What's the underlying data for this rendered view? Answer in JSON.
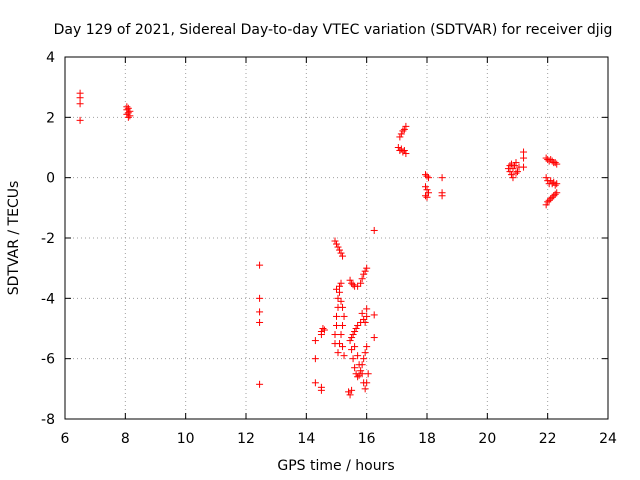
{
  "chart_data": {
    "type": "scatter",
    "title": "Day 129 of 2021, Sidereal Day-to-day VTEC variation (SDTVAR) for receiver djig",
    "xlabel": "GPS time / hours",
    "ylabel": "SDTVAR / TECUs",
    "xlim": [
      6,
      24
    ],
    "ylim": [
      -8,
      4
    ],
    "xticks": [
      6,
      8,
      10,
      12,
      14,
      16,
      18,
      20,
      22,
      24
    ],
    "yticks": [
      -8,
      -6,
      -4,
      -2,
      0,
      2,
      4
    ],
    "grid": true,
    "marker": "+",
    "marker_color": "#ff0000",
    "series": [
      {
        "name": "SDTVAR",
        "points": [
          [
            6.5,
            2.8
          ],
          [
            6.5,
            2.65
          ],
          [
            6.5,
            2.45
          ],
          [
            6.5,
            1.9
          ],
          [
            8.05,
            2.35
          ],
          [
            8.1,
            2.3
          ],
          [
            8.05,
            2.25
          ],
          [
            8.15,
            2.2
          ],
          [
            8.1,
            2.15
          ],
          [
            8.05,
            2.1
          ],
          [
            8.15,
            2.05
          ],
          [
            8.1,
            2.0
          ],
          [
            12.45,
            -2.9
          ],
          [
            12.45,
            -4.0
          ],
          [
            12.45,
            -4.45
          ],
          [
            12.45,
            -4.8
          ],
          [
            12.45,
            -6.85
          ],
          [
            14.3,
            -5.4
          ],
          [
            14.3,
            -6.0
          ],
          [
            14.3,
            -6.8
          ],
          [
            14.5,
            -6.95
          ],
          [
            14.5,
            -7.05
          ],
          [
            14.5,
            -5.1
          ],
          [
            14.55,
            -5.0
          ],
          [
            14.6,
            -5.05
          ],
          [
            14.5,
            -5.2
          ],
          [
            14.95,
            -2.1
          ],
          [
            15.0,
            -2.2
          ],
          [
            15.05,
            -2.3
          ],
          [
            15.1,
            -2.4
          ],
          [
            15.15,
            -2.5
          ],
          [
            15.2,
            -2.6
          ],
          [
            14.95,
            -5.5
          ],
          [
            14.95,
            -5.2
          ],
          [
            15.0,
            -4.9
          ],
          [
            15.0,
            -4.6
          ],
          [
            15.05,
            -4.3
          ],
          [
            15.05,
            -4.0
          ],
          [
            15.1,
            -3.8
          ],
          [
            15.1,
            -3.6
          ],
          [
            15.15,
            -3.5
          ],
          [
            15.0,
            -3.7
          ],
          [
            15.05,
            -5.8
          ],
          [
            15.1,
            -5.5
          ],
          [
            15.15,
            -5.2
          ],
          [
            15.2,
            -4.9
          ],
          [
            15.25,
            -4.6
          ],
          [
            15.2,
            -4.3
          ],
          [
            15.15,
            -4.1
          ],
          [
            15.25,
            -5.9
          ],
          [
            15.2,
            -5.6
          ],
          [
            15.4,
            -7.1
          ],
          [
            15.45,
            -7.2
          ],
          [
            15.5,
            -7.05
          ],
          [
            15.45,
            -3.4
          ],
          [
            15.5,
            -3.5
          ],
          [
            15.55,
            -3.55
          ],
          [
            15.6,
            -3.6
          ],
          [
            15.7,
            -3.6
          ],
          [
            15.8,
            -3.5
          ],
          [
            15.85,
            -3.35
          ],
          [
            15.9,
            -3.2
          ],
          [
            15.95,
            -3.1
          ],
          [
            16.0,
            -3.0
          ],
          [
            15.45,
            -5.4
          ],
          [
            15.5,
            -5.3
          ],
          [
            15.55,
            -5.2
          ],
          [
            15.6,
            -5.1
          ],
          [
            15.65,
            -5.0
          ],
          [
            15.7,
            -4.9
          ],
          [
            15.8,
            -4.8
          ],
          [
            15.5,
            -5.7
          ],
          [
            15.55,
            -6.0
          ],
          [
            15.6,
            -6.3
          ],
          [
            15.65,
            -6.5
          ],
          [
            15.7,
            -6.6
          ],
          [
            15.75,
            -6.55
          ],
          [
            15.8,
            -6.4
          ],
          [
            15.85,
            -6.2
          ],
          [
            15.9,
            -6.0
          ],
          [
            15.95,
            -5.8
          ],
          [
            16.0,
            -5.6
          ],
          [
            15.6,
            -5.6
          ],
          [
            15.7,
            -5.9
          ],
          [
            15.75,
            -6.2
          ],
          [
            15.85,
            -6.5
          ],
          [
            15.9,
            -6.8
          ],
          [
            15.95,
            -7.0
          ],
          [
            16.0,
            -6.8
          ],
          [
            16.05,
            -6.5
          ],
          [
            15.85,
            -4.5
          ],
          [
            15.9,
            -4.7
          ],
          [
            15.95,
            -4.8
          ],
          [
            16.0,
            -4.6
          ],
          [
            16.0,
            -4.35
          ],
          [
            16.25,
            -1.75
          ],
          [
            16.25,
            -4.55
          ],
          [
            16.25,
            -5.3
          ],
          [
            17.1,
            1.35
          ],
          [
            17.15,
            1.45
          ],
          [
            17.2,
            1.55
          ],
          [
            17.25,
            1.6
          ],
          [
            17.3,
            1.7
          ],
          [
            17.05,
            1.0
          ],
          [
            17.1,
            0.9
          ],
          [
            17.15,
            0.95
          ],
          [
            17.2,
            0.85
          ],
          [
            17.25,
            0.9
          ],
          [
            17.3,
            0.8
          ],
          [
            17.95,
            0.1
          ],
          [
            18.0,
            0.05
          ],
          [
            18.05,
            0.0
          ],
          [
            17.95,
            -0.3
          ],
          [
            18.0,
            -0.4
          ],
          [
            18.05,
            -0.5
          ],
          [
            17.95,
            -0.6
          ],
          [
            18.0,
            -0.65
          ],
          [
            18.5,
            0.0
          ],
          [
            18.5,
            -0.5
          ],
          [
            18.5,
            -0.6
          ],
          [
            20.7,
            0.3
          ],
          [
            20.75,
            0.2
          ],
          [
            20.8,
            0.1
          ],
          [
            20.85,
            0.3
          ],
          [
            20.9,
            0.4
          ],
          [
            20.95,
            0.5
          ],
          [
            21.0,
            0.2
          ],
          [
            20.75,
            0.4
          ],
          [
            20.85,
            0.0
          ],
          [
            20.95,
            0.15
          ],
          [
            21.05,
            0.35
          ],
          [
            20.8,
            0.45
          ],
          [
            21.2,
            0.85
          ],
          [
            21.2,
            0.65
          ],
          [
            21.2,
            0.35
          ],
          [
            21.95,
            0.65
          ],
          [
            22.0,
            0.6
          ],
          [
            22.05,
            0.55
          ],
          [
            22.1,
            0.6
          ],
          [
            22.15,
            0.55
          ],
          [
            22.2,
            0.5
          ],
          [
            22.25,
            0.5
          ],
          [
            22.3,
            0.45
          ],
          [
            21.95,
            0.0
          ],
          [
            22.0,
            -0.1
          ],
          [
            22.05,
            -0.2
          ],
          [
            22.1,
            -0.1
          ],
          [
            22.15,
            -0.2
          ],
          [
            22.2,
            -0.15
          ],
          [
            22.25,
            -0.25
          ],
          [
            22.3,
            -0.2
          ],
          [
            21.95,
            -0.9
          ],
          [
            22.0,
            -0.8
          ],
          [
            22.05,
            -0.75
          ],
          [
            22.1,
            -0.7
          ],
          [
            22.15,
            -0.65
          ],
          [
            22.2,
            -0.6
          ],
          [
            22.25,
            -0.55
          ],
          [
            22.3,
            -0.5
          ]
        ]
      }
    ]
  }
}
